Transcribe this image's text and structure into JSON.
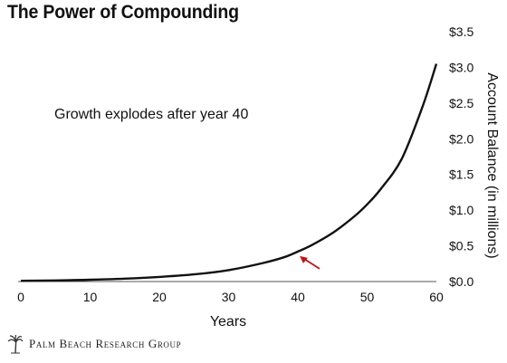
{
  "chart_data": {
    "type": "line",
    "title": "The Power of Compounding",
    "xlabel": "Years",
    "ylabel": "Account Balance (in millions)",
    "xlim": [
      0,
      60
    ],
    "ylim": [
      0,
      3.5
    ],
    "x_ticks": [
      "0",
      "10",
      "20",
      "30",
      "40",
      "50",
      "60"
    ],
    "y_ticks": [
      "$0.0",
      "$0.5",
      "$1.0",
      "$1.5",
      "$2.0",
      "$2.5",
      "$3.0",
      "$3.5"
    ],
    "grid": false,
    "annotation": "Growth explodes after year 40",
    "arrow_at": [
      40,
      0.42
    ],
    "series": [
      {
        "x": [
          0,
          5,
          10,
          15,
          20,
          25,
          30,
          35,
          38,
          40,
          42,
          45,
          48,
          50,
          52,
          55,
          58,
          60
        ],
        "values": [
          0.01,
          0.015,
          0.025,
          0.04,
          0.065,
          0.1,
          0.16,
          0.26,
          0.34,
          0.42,
          0.51,
          0.68,
          0.9,
          1.08,
          1.3,
          1.72,
          2.45,
          3.05
        ]
      }
    ],
    "line_color": "#111111",
    "arrow_color": "#c0141b"
  },
  "footer": {
    "brand": "Palm Beach Research Group"
  },
  "icons": {
    "logo": "palm-tree-icon"
  }
}
